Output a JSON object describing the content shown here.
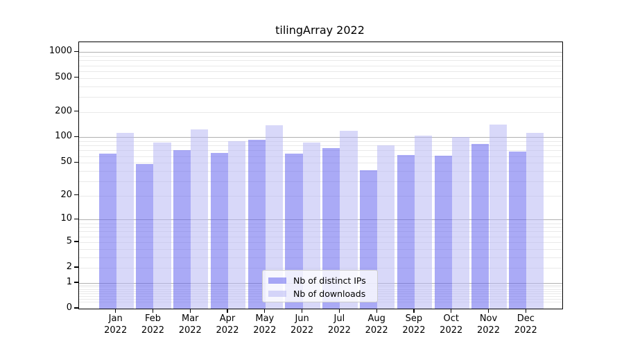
{
  "title": "tilingArray 2022",
  "legend": {
    "items": [
      {
        "label": "Nb of distinct IPs",
        "color_key": "ips"
      },
      {
        "label": "Nb of downloads",
        "color_key": "downloads"
      }
    ]
  },
  "colors": {
    "ips": "#6464ee",
    "downloads": "#b8b8f4",
    "bar_alpha": 0.55,
    "grid_major": "#b0b0b0",
    "grid_minor": "#e9e9e9",
    "axis": "#000000",
    "legend_border": "#cccccc"
  },
  "chart_data": {
    "type": "bar",
    "title": "tilingArray 2022",
    "categories": [
      "Jan",
      "Feb",
      "Mar",
      "Apr",
      "May",
      "Jun",
      "Jul",
      "Aug",
      "Sep",
      "Oct",
      "Nov",
      "Dec"
    ],
    "year_label": "2022",
    "series": [
      {
        "name": "Nb of distinct IPs",
        "color_key": "ips",
        "values": [
          64,
          48,
          71,
          65,
          93,
          64,
          75,
          41,
          62,
          61,
          84,
          68
        ]
      },
      {
        "name": "Nb of downloads",
        "color_key": "downloads",
        "values": [
          112,
          86,
          124,
          90,
          138,
          87,
          119,
          80,
          105,
          101,
          141,
          114
        ]
      }
    ],
    "yscale": "log1p",
    "ylim": [
      0,
      1300
    ],
    "yticks": [
      0,
      1,
      2,
      5,
      10,
      20,
      50,
      100,
      200,
      500,
      1000
    ],
    "grid": "horizontal",
    "legend_position": "lower-center-inside"
  }
}
